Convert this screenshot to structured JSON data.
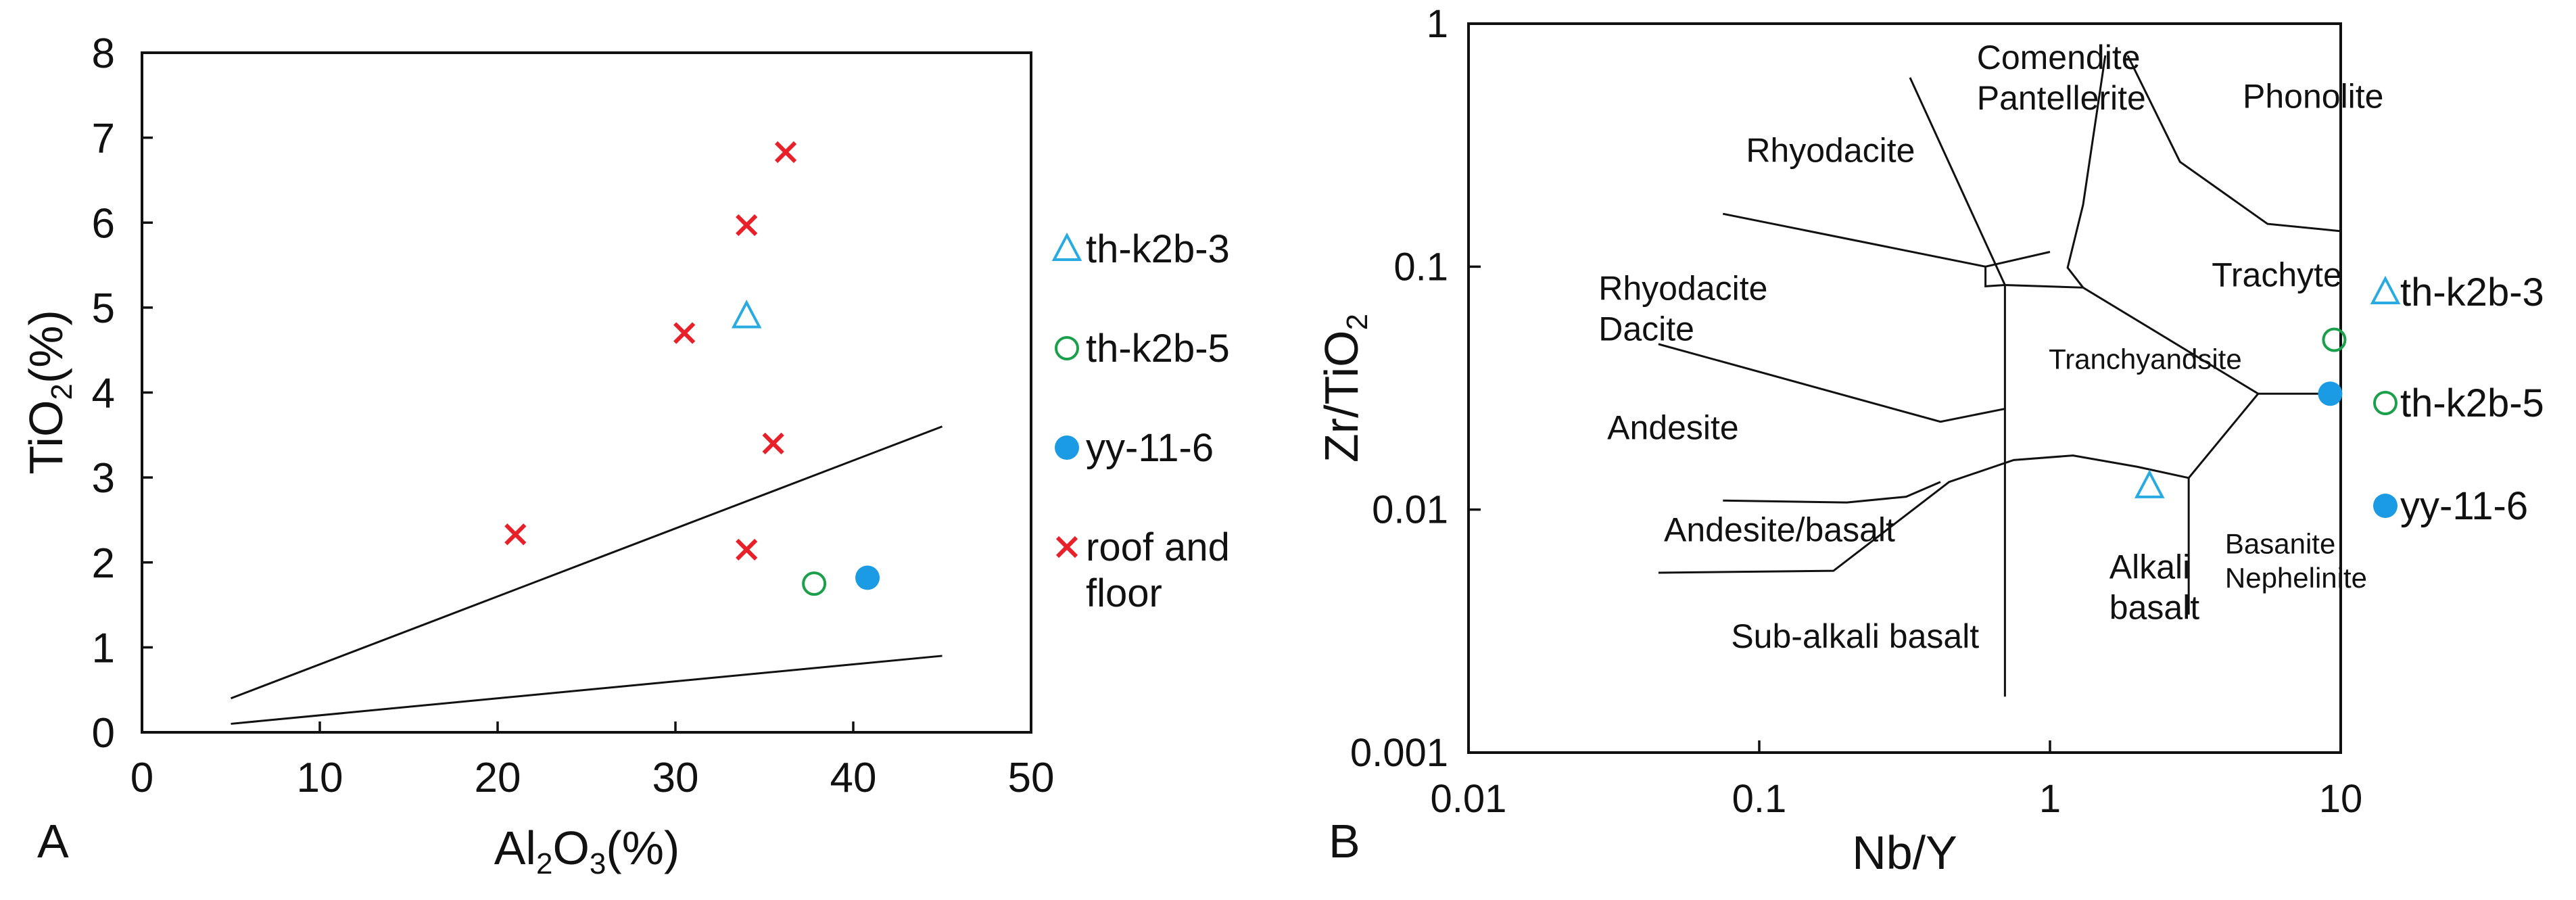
{
  "chart_data": [
    {
      "type": "scatter",
      "panel_label": "A",
      "xlabel": {
        "main": "Al",
        "sub1": "2",
        "mid": "O",
        "sub2": "3",
        "tail": "(%)"
      },
      "ylabel": {
        "main": "TiO",
        "sub": "2",
        "tail": "(%)"
      },
      "xlim": [
        0,
        50
      ],
      "ylim": [
        0,
        8
      ],
      "xticks": [
        0,
        10,
        20,
        30,
        40,
        50
      ],
      "yticks": [
        0,
        1,
        2,
        3,
        4,
        5,
        6,
        7,
        8
      ],
      "boundary_lines": [
        [
          [
            5,
            0.4
          ],
          [
            45,
            3.6
          ]
        ],
        [
          [
            5,
            0.1
          ],
          [
            45,
            0.9
          ]
        ]
      ],
      "series": [
        {
          "name": "th-k2b-3",
          "marker": "triangle-open",
          "color": "#29abe2",
          "points": [
            [
              34,
              4.9
            ]
          ]
        },
        {
          "name": "th-k2b-5",
          "marker": "circle-open",
          "color": "#1aa04a",
          "points": [
            [
              37.8,
              1.75
            ]
          ]
        },
        {
          "name": "yy-11-6",
          "marker": "circle-filled",
          "color": "#1a9be3",
          "points": [
            [
              40.8,
              1.82
            ]
          ]
        },
        {
          "name": "roof and floor",
          "legend_lines": [
            "roof and",
            "floor"
          ],
          "marker": "x",
          "color": "#e8202a",
          "points": [
            [
              36.2,
              6.83
            ],
            [
              34,
              5.97
            ],
            [
              30.5,
              4.7
            ],
            [
              35.5,
              3.4
            ],
            [
              21,
              2.33
            ],
            [
              34,
              2.15
            ]
          ]
        }
      ],
      "legend_placement": "right"
    },
    {
      "type": "scatter",
      "panel_label": "B",
      "xlabel": {
        "main": "Nb/Y"
      },
      "ylabel": {
        "main": "Zr/TiO",
        "sub": "2"
      },
      "x_scale": "log",
      "y_scale": "log",
      "xlim": [
        0.01,
        10
      ],
      "ylim": [
        0.001,
        1
      ],
      "xticks": [
        0.01,
        0.1,
        1,
        10
      ],
      "xtick_labels": [
        "0.01",
        "0.1",
        "1",
        "10"
      ],
      "yticks": [
        0.001,
        0.01,
        0.1,
        1
      ],
      "ytick_labels": [
        "0.001",
        "0.01",
        "0.1",
        "1"
      ],
      "field_labels": [
        {
          "lines": [
            "Comendite",
            "Pantellerite"
          ],
          "x": 0.56,
          "y": 0.65
        },
        {
          "lines": [
            "Phonolite"
          ],
          "x": 4.6,
          "y": 0.45
        },
        {
          "lines": [
            "Rhyodacite"
          ],
          "x": 0.09,
          "y": 0.27
        },
        {
          "lines": [
            "Rhyodacite",
            "Dacite"
          ],
          "x": 0.028,
          "y": 0.073
        },
        {
          "lines": [
            "Trachyte"
          ],
          "x": 3.6,
          "y": 0.083
        },
        {
          "lines": [
            "Tranchyandsite"
          ],
          "x": 0.99,
          "y": 0.038,
          "size": "small"
        },
        {
          "lines": [
            "Andesite"
          ],
          "x": 0.03,
          "y": 0.0195
        },
        {
          "lines": [
            "Andesite/basalt"
          ],
          "x": 0.047,
          "y": 0.0074
        },
        {
          "lines": [
            "Alkali",
            "basalt"
          ],
          "x": 1.6,
          "y": 0.0052
        },
        {
          "lines": [
            "Basanite",
            "Nephelinite"
          ],
          "x": 4.0,
          "y": 0.0066,
          "size": "small"
        },
        {
          "lines": [
            "Sub-alkali basalt"
          ],
          "x": 0.08,
          "y": 0.0027
        }
      ],
      "boundary_lines": [
        [
          [
            0.33,
            0.6
          ],
          [
            0.7,
            0.084
          ],
          [
            1.3,
            0.082
          ],
          [
            5.2,
            0.03
          ],
          [
            3.0,
            0.0135
          ]
        ],
        [
          [
            0.7,
            0.084
          ],
          [
            0.7,
            0.0017
          ]
        ],
        [
          [
            0.7,
            0.084
          ],
          [
            0.6,
            0.083
          ],
          [
            0.6,
            0.1
          ],
          [
            1.0,
            0.115
          ]
        ],
        [
          [
            0.075,
            0.165
          ],
          [
            0.6,
            0.1
          ]
        ],
        [
          [
            0.045,
            0.048
          ],
          [
            0.42,
            0.023
          ],
          [
            0.7,
            0.026
          ]
        ],
        [
          [
            1.3,
            0.082
          ],
          [
            1.15,
            0.099
          ],
          [
            1.3,
            0.18
          ],
          [
            1.55,
            0.74
          ]
        ],
        [
          [
            1.85,
            0.74
          ],
          [
            2.8,
            0.27
          ],
          [
            5.6,
            0.15
          ],
          [
            10,
            0.14
          ]
        ],
        [
          [
            5.2,
            0.03
          ],
          [
            10,
            0.03
          ]
        ],
        [
          [
            0.045,
            0.0055
          ],
          [
            0.18,
            0.0056
          ],
          [
            0.45,
            0.013
          ],
          [
            0.75,
            0.016
          ],
          [
            1.2,
            0.0167
          ],
          [
            2.0,
            0.015
          ],
          [
            3.0,
            0.0135
          ]
        ],
        [
          [
            0.075,
            0.0109
          ],
          [
            0.2,
            0.0107
          ],
          [
            0.32,
            0.0113
          ],
          [
            0.42,
            0.013
          ]
        ],
        [
          [
            3.0,
            0.0135
          ],
          [
            3.0,
            0.0037
          ]
        ]
      ],
      "series": [
        {
          "name": "th-k2b-3",
          "marker": "triangle-open",
          "color": "#29abe2",
          "points": [
            [
              2.2,
              0.0125
            ]
          ]
        },
        {
          "name": "th-k2b-5",
          "marker": "circle-open",
          "color": "#1aa04a",
          "points": [
            [
              9.5,
              0.05
            ]
          ]
        },
        {
          "name": "yy-11-6",
          "marker": "circle-filled",
          "color": "#1a9be3",
          "points": [
            [
              9.2,
              0.03
            ]
          ]
        }
      ],
      "legend_placement": "right"
    }
  ]
}
